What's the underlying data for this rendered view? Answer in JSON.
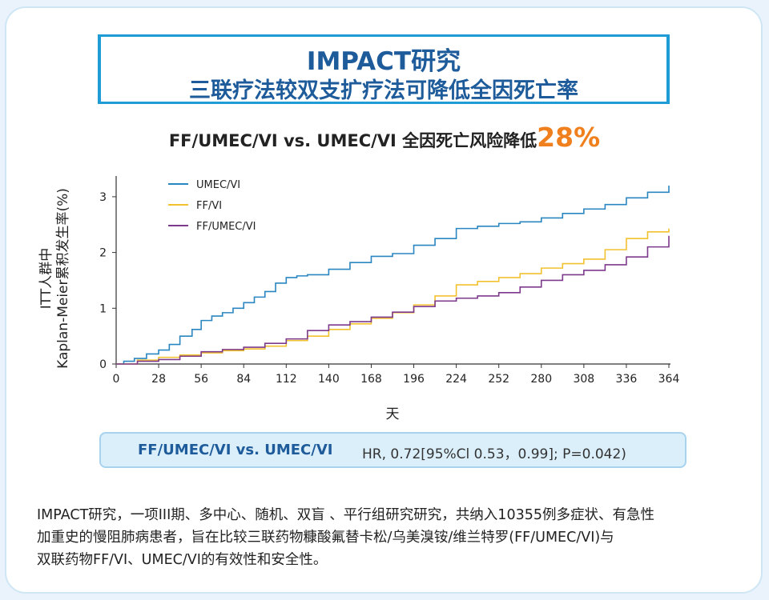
{
  "banner": {
    "title": "IMPACT研究",
    "subtitle": "三联疗法较双支扩疗法可降低全因死亡率"
  },
  "headline": {
    "text": "FF/UMEC/VI vs. UMEC/VI 全因死亡风险降低",
    "highlight": "28%",
    "highlight_color": "#f07f1e"
  },
  "hr_box": {
    "comparison": "FF/UMEC/VI vs. UMEC/VI",
    "result": "HR, 0.72[95%Cl 0.53，0.99]; P=0.042)"
  },
  "description": [
    "IMPACT研究，一项III期、多中心、随机、双盲 、平行组研究研究，共纳入10355例多症状、有急性",
    "加重史的慢阻肺病患者，旨在比较三联药物糠酸氟替卡松/乌美溴铵/维兰特罗(FF/UMEC/VI)与",
    "双联药物FF/VI、UMEC/VI的有效性和安全性。"
  ],
  "chart_data": {
    "type": "line",
    "step": true,
    "xlabel": "天",
    "ylabel_line1": "ITT人群中",
    "ylabel_line2": "Kaplan-Meier累积发生率(%)",
    "xlim": [
      0,
      364
    ],
    "ylim": [
      0,
      3.3
    ],
    "x_ticks": [
      0,
      28,
      56,
      84,
      112,
      140,
      168,
      196,
      224,
      252,
      280,
      308,
      336,
      364
    ],
    "y_ticks": [
      0,
      1,
      2,
      3
    ],
    "grid": false,
    "legend_position": "top-left",
    "series": [
      {
        "name": "UMEC/VI",
        "color": "#2a86c0",
        "points": [
          [
            0,
            0
          ],
          [
            5,
            0.05
          ],
          [
            12,
            0.1
          ],
          [
            20,
            0.18
          ],
          [
            28,
            0.25
          ],
          [
            35,
            0.35
          ],
          [
            42,
            0.5
          ],
          [
            50,
            0.62
          ],
          [
            56,
            0.78
          ],
          [
            63,
            0.86
          ],
          [
            70,
            0.92
          ],
          [
            77,
            1.0
          ],
          [
            84,
            1.1
          ],
          [
            91,
            1.2
          ],
          [
            98,
            1.3
          ],
          [
            105,
            1.45
          ],
          [
            112,
            1.55
          ],
          [
            119,
            1.58
          ],
          [
            126,
            1.6
          ],
          [
            140,
            1.7
          ],
          [
            154,
            1.82
          ],
          [
            168,
            1.93
          ],
          [
            182,
            1.98
          ],
          [
            196,
            2.13
          ],
          [
            210,
            2.25
          ],
          [
            224,
            2.43
          ],
          [
            238,
            2.47
          ],
          [
            252,
            2.52
          ],
          [
            266,
            2.55
          ],
          [
            280,
            2.62
          ],
          [
            294,
            2.7
          ],
          [
            308,
            2.78
          ],
          [
            322,
            2.86
          ],
          [
            336,
            2.98
          ],
          [
            350,
            3.08
          ],
          [
            364,
            3.2
          ]
        ]
      },
      {
        "name": "FF/VI",
        "color": "#f2c12e",
        "points": [
          [
            0,
            0
          ],
          [
            14,
            0.07
          ],
          [
            28,
            0.12
          ],
          [
            42,
            0.16
          ],
          [
            56,
            0.2
          ],
          [
            70,
            0.24
          ],
          [
            84,
            0.27
          ],
          [
            98,
            0.32
          ],
          [
            112,
            0.42
          ],
          [
            126,
            0.5
          ],
          [
            140,
            0.62
          ],
          [
            154,
            0.72
          ],
          [
            168,
            0.82
          ],
          [
            182,
            0.92
          ],
          [
            196,
            1.06
          ],
          [
            210,
            1.22
          ],
          [
            224,
            1.42
          ],
          [
            238,
            1.48
          ],
          [
            252,
            1.55
          ],
          [
            266,
            1.62
          ],
          [
            280,
            1.72
          ],
          [
            294,
            1.8
          ],
          [
            308,
            1.88
          ],
          [
            322,
            2.05
          ],
          [
            336,
            2.25
          ],
          [
            350,
            2.37
          ],
          [
            364,
            2.43
          ]
        ]
      },
      {
        "name": "FF/UMEC/VI",
        "color": "#7d3a8c",
        "points": [
          [
            0,
            0
          ],
          [
            14,
            0.05
          ],
          [
            28,
            0.08
          ],
          [
            42,
            0.14
          ],
          [
            56,
            0.22
          ],
          [
            70,
            0.26
          ],
          [
            84,
            0.3
          ],
          [
            98,
            0.37
          ],
          [
            112,
            0.45
          ],
          [
            126,
            0.6
          ],
          [
            140,
            0.7
          ],
          [
            154,
            0.76
          ],
          [
            168,
            0.84
          ],
          [
            182,
            0.93
          ],
          [
            196,
            1.03
          ],
          [
            210,
            1.13
          ],
          [
            224,
            1.18
          ],
          [
            238,
            1.22
          ],
          [
            252,
            1.28
          ],
          [
            266,
            1.38
          ],
          [
            280,
            1.5
          ],
          [
            294,
            1.6
          ],
          [
            308,
            1.68
          ],
          [
            322,
            1.78
          ],
          [
            336,
            1.92
          ],
          [
            350,
            2.1
          ],
          [
            364,
            2.3
          ]
        ]
      }
    ]
  }
}
